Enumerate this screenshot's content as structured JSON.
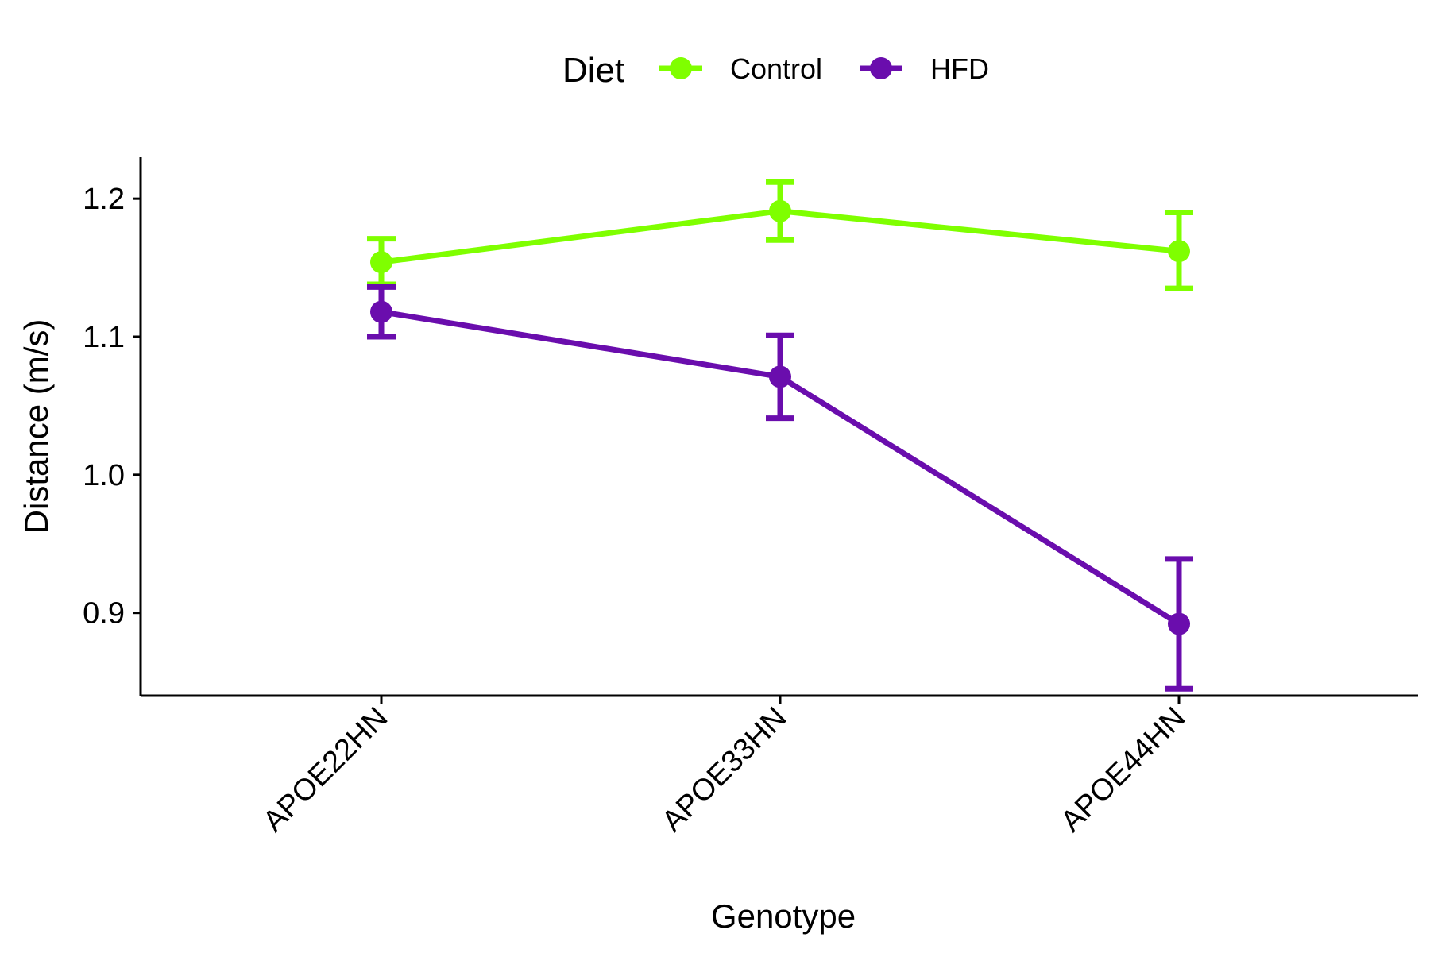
{
  "chart_data": {
    "type": "line",
    "title": "",
    "xlabel": "Genotype",
    "ylabel": "Distance (m/s)",
    "categories": [
      "APOE22HN",
      "APOE33HN",
      "APOE44HN"
    ],
    "yticks": [
      "0.9",
      "1.0",
      "1.1",
      "1.2"
    ],
    "ylim": [
      0.84,
      1.23
    ],
    "grid": false,
    "legend": {
      "title": "Diet",
      "position": "top"
    },
    "series": [
      {
        "name": "Control",
        "color": "#7FFF00",
        "values": [
          1.154,
          1.191,
          1.162
        ],
        "error_low": [
          1.138,
          1.17,
          1.135
        ],
        "error_high": [
          1.171,
          1.212,
          1.19
        ]
      },
      {
        "name": "HFD",
        "color": "#6A0DAD",
        "values": [
          1.118,
          1.071,
          0.892
        ],
        "error_low": [
          1.1,
          1.041,
          0.845
        ],
        "error_high": [
          1.136,
          1.101,
          0.939
        ]
      }
    ]
  }
}
